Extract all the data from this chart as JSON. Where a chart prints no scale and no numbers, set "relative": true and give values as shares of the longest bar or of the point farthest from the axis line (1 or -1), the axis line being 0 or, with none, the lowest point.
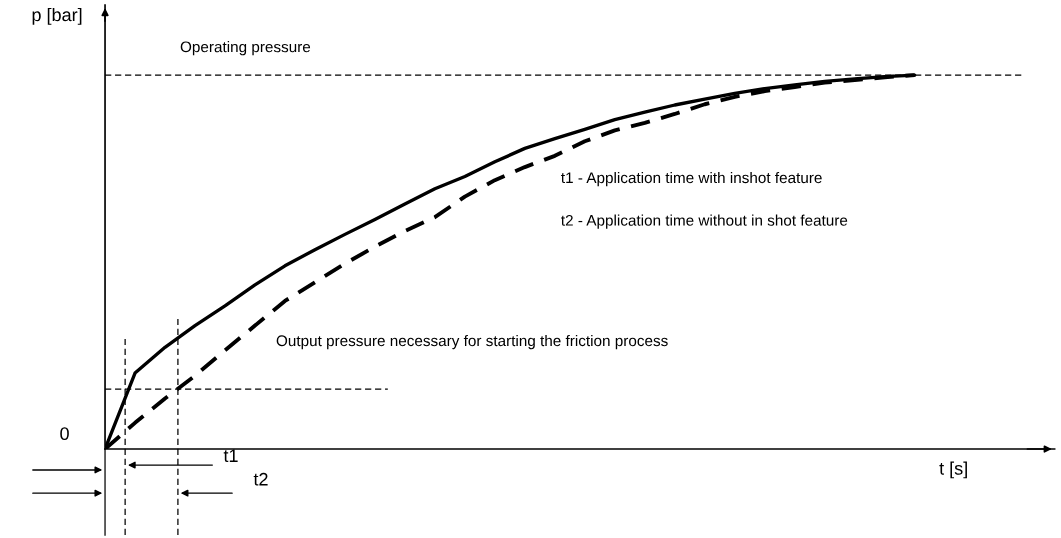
{
  "chart_data": {
    "type": "line",
    "relative": true,
    "xlabel": "t [s]",
    "ylabel": "p [bar]",
    "categories": [
      null,
      null,
      null,
      null,
      null,
      null,
      null,
      null,
      null,
      null,
      null,
      null,
      null,
      null,
      null,
      null,
      null,
      null,
      null,
      null,
      null,
      null,
      null,
      null,
      null,
      null,
      null,
      null
    ],
    "series": [
      {
        "color": "#000000",
        "line_style": "solid",
        "values": [
          0,
          0.203,
          0.272,
          0.33,
          0.383,
          0.439,
          0.49,
          0.533,
          0.574,
          0.614,
          0.655,
          0.696,
          0.729,
          0.768,
          0.804,
          0.83,
          0.855,
          0.881,
          0.901,
          0.92,
          0.936,
          0.951,
          0.964,
          0.974,
          0.983,
          0.99,
          0.996,
          1
        ]
      },
      {
        "color": "#000000",
        "line_style": "dashed",
        "values": [
          0,
          0.07,
          0.135,
          0.196,
          0.264,
          0.33,
          0.396,
          0.446,
          0.496,
          0.541,
          0.583,
          0.62,
          0.675,
          0.719,
          0.754,
          0.784,
          0.823,
          0.852,
          0.872,
          0.896,
          0.922,
          0.942,
          0.957,
          0.968,
          0.98,
          0.987,
          0.994,
          1
        ]
      }
    ],
    "ref_lines": [
      {
        "axis": "y",
        "value": 1,
        "label": "Operating pressure",
        "line_style": "dashed",
        "color": "#000000"
      },
      {
        "axis": "y",
        "value": 0.16,
        "line_style": "dashed",
        "color": "#000000"
      }
    ],
    "annotations": [
      "0",
      "t1",
      "t2",
      "t1 - Application time with inshot feature",
      "t2 - Application time without in shot feature",
      "Output pressure necessary for starting the friction process"
    ],
    "grid": false,
    "legend": false,
    "marker": "none"
  }
}
